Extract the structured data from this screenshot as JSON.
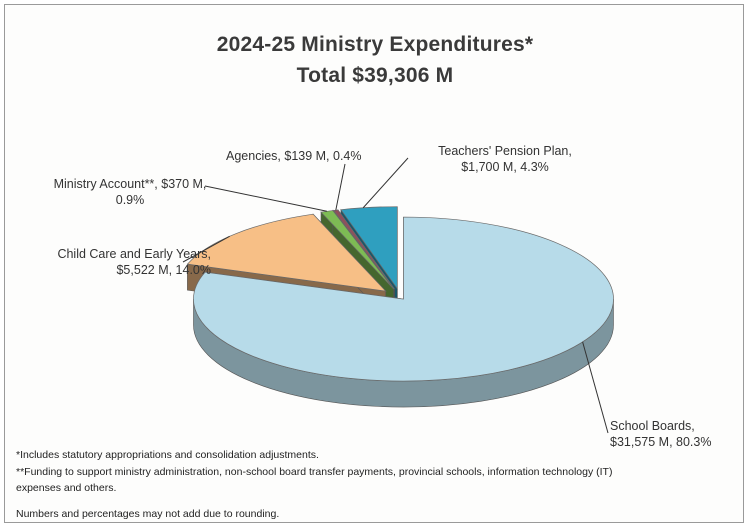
{
  "chart_data": {
    "type": "pie",
    "title_line1": "2024-25 Ministry Expenditures*",
    "title_line2": "Total $39,306 M",
    "slices": [
      {
        "name": "School Boards",
        "value": 31575,
        "percent": 80.3,
        "value_label": "$31,575 M",
        "percent_label": "80.3%",
        "color": "#b7dbe9"
      },
      {
        "name": "Child Care and Early Years",
        "value": 5522,
        "percent": 14.0,
        "value_label": "$5,522 M",
        "percent_label": "14.0%",
        "color": "#f7bf86"
      },
      {
        "name": "Ministry Account**",
        "value": 370,
        "percent": 0.9,
        "value_label": "$370 M",
        "percent_label": "0.9%",
        "color": "#7dbb54"
      },
      {
        "name": "Agencies",
        "value": 139,
        "percent": 0.4,
        "value_label": "$139 M",
        "percent_label": "0.4%",
        "color": "#8f4f5c"
      },
      {
        "name": "Teachers' Pension Plan",
        "value": 1700,
        "percent": 4.3,
        "value_label": "$1,700 M",
        "percent_label": "4.3%",
        "color": "#2f9fbf"
      }
    ],
    "labels": {
      "school_boards_l1": "School Boards,",
      "school_boards_l2": "$31,575 M, 80.3%",
      "child_care_l1": "Child Care and Early Years,",
      "child_care_l2": "$5,522 M, 14.0%",
      "ministry_l1": "Ministry Account**,  $370 M,",
      "ministry_l2": "0.9%",
      "agencies": "Agencies,  $139 M, 0.4%",
      "tpp_l1": "Teachers' Pension Plan,",
      "tpp_l2": "$1,700 M, 4.3%"
    }
  },
  "footnotes": {
    "note1": "*Includes statutory appropriations and consolidation adjustments.",
    "note2": " **Funding to support ministry administration, non-school board transfer payments, provincial schools, information technology (IT)",
    "note2b": "expenses and others.",
    "note3": "Numbers and percentages may not add due to rounding."
  }
}
